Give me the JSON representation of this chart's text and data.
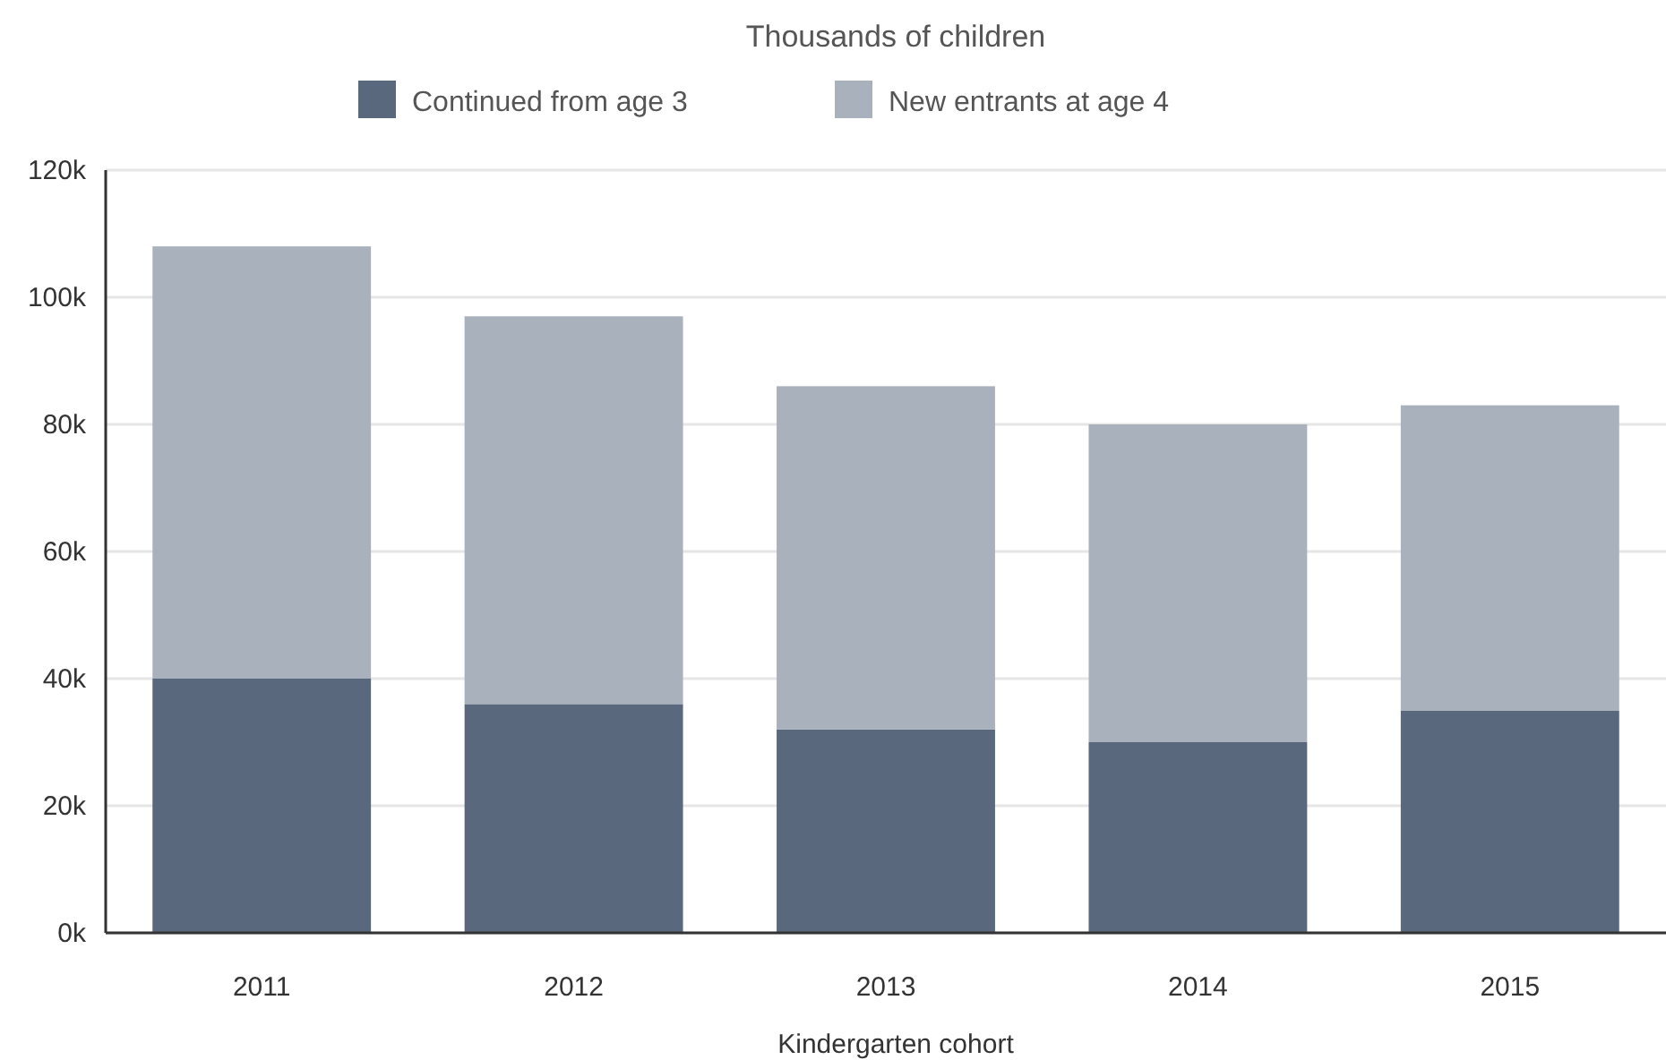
{
  "chart_data": {
    "type": "bar",
    "subtitle": "Thousands of children",
    "xlabel": "Kindergarten cohort",
    "categories": [
      "2011",
      "2012",
      "2013",
      "2014",
      "2015"
    ],
    "stacked": true,
    "legend": "top",
    "series": [
      {
        "name": "Continued from age 3",
        "color": "#5a687d",
        "values": [
          40000,
          36000,
          32000,
          30000,
          35000
        ]
      },
      {
        "name": "New entrants at age 4",
        "color": "#a9b2bc",
        "values": [
          68000,
          61000,
          54000,
          50000,
          48000
        ]
      }
    ],
    "ylim": [
      0,
      120000
    ],
    "yticks": [
      {
        "value": 0,
        "label": "0k"
      },
      {
        "value": 20000,
        "label": "20k"
      },
      {
        "value": 40000,
        "label": "40k"
      },
      {
        "value": 60000,
        "label": "60k"
      },
      {
        "value": 80000,
        "label": "80k"
      },
      {
        "value": 100000,
        "label": "100k"
      },
      {
        "value": 120000,
        "label": "120k"
      }
    ],
    "grid": "y"
  }
}
